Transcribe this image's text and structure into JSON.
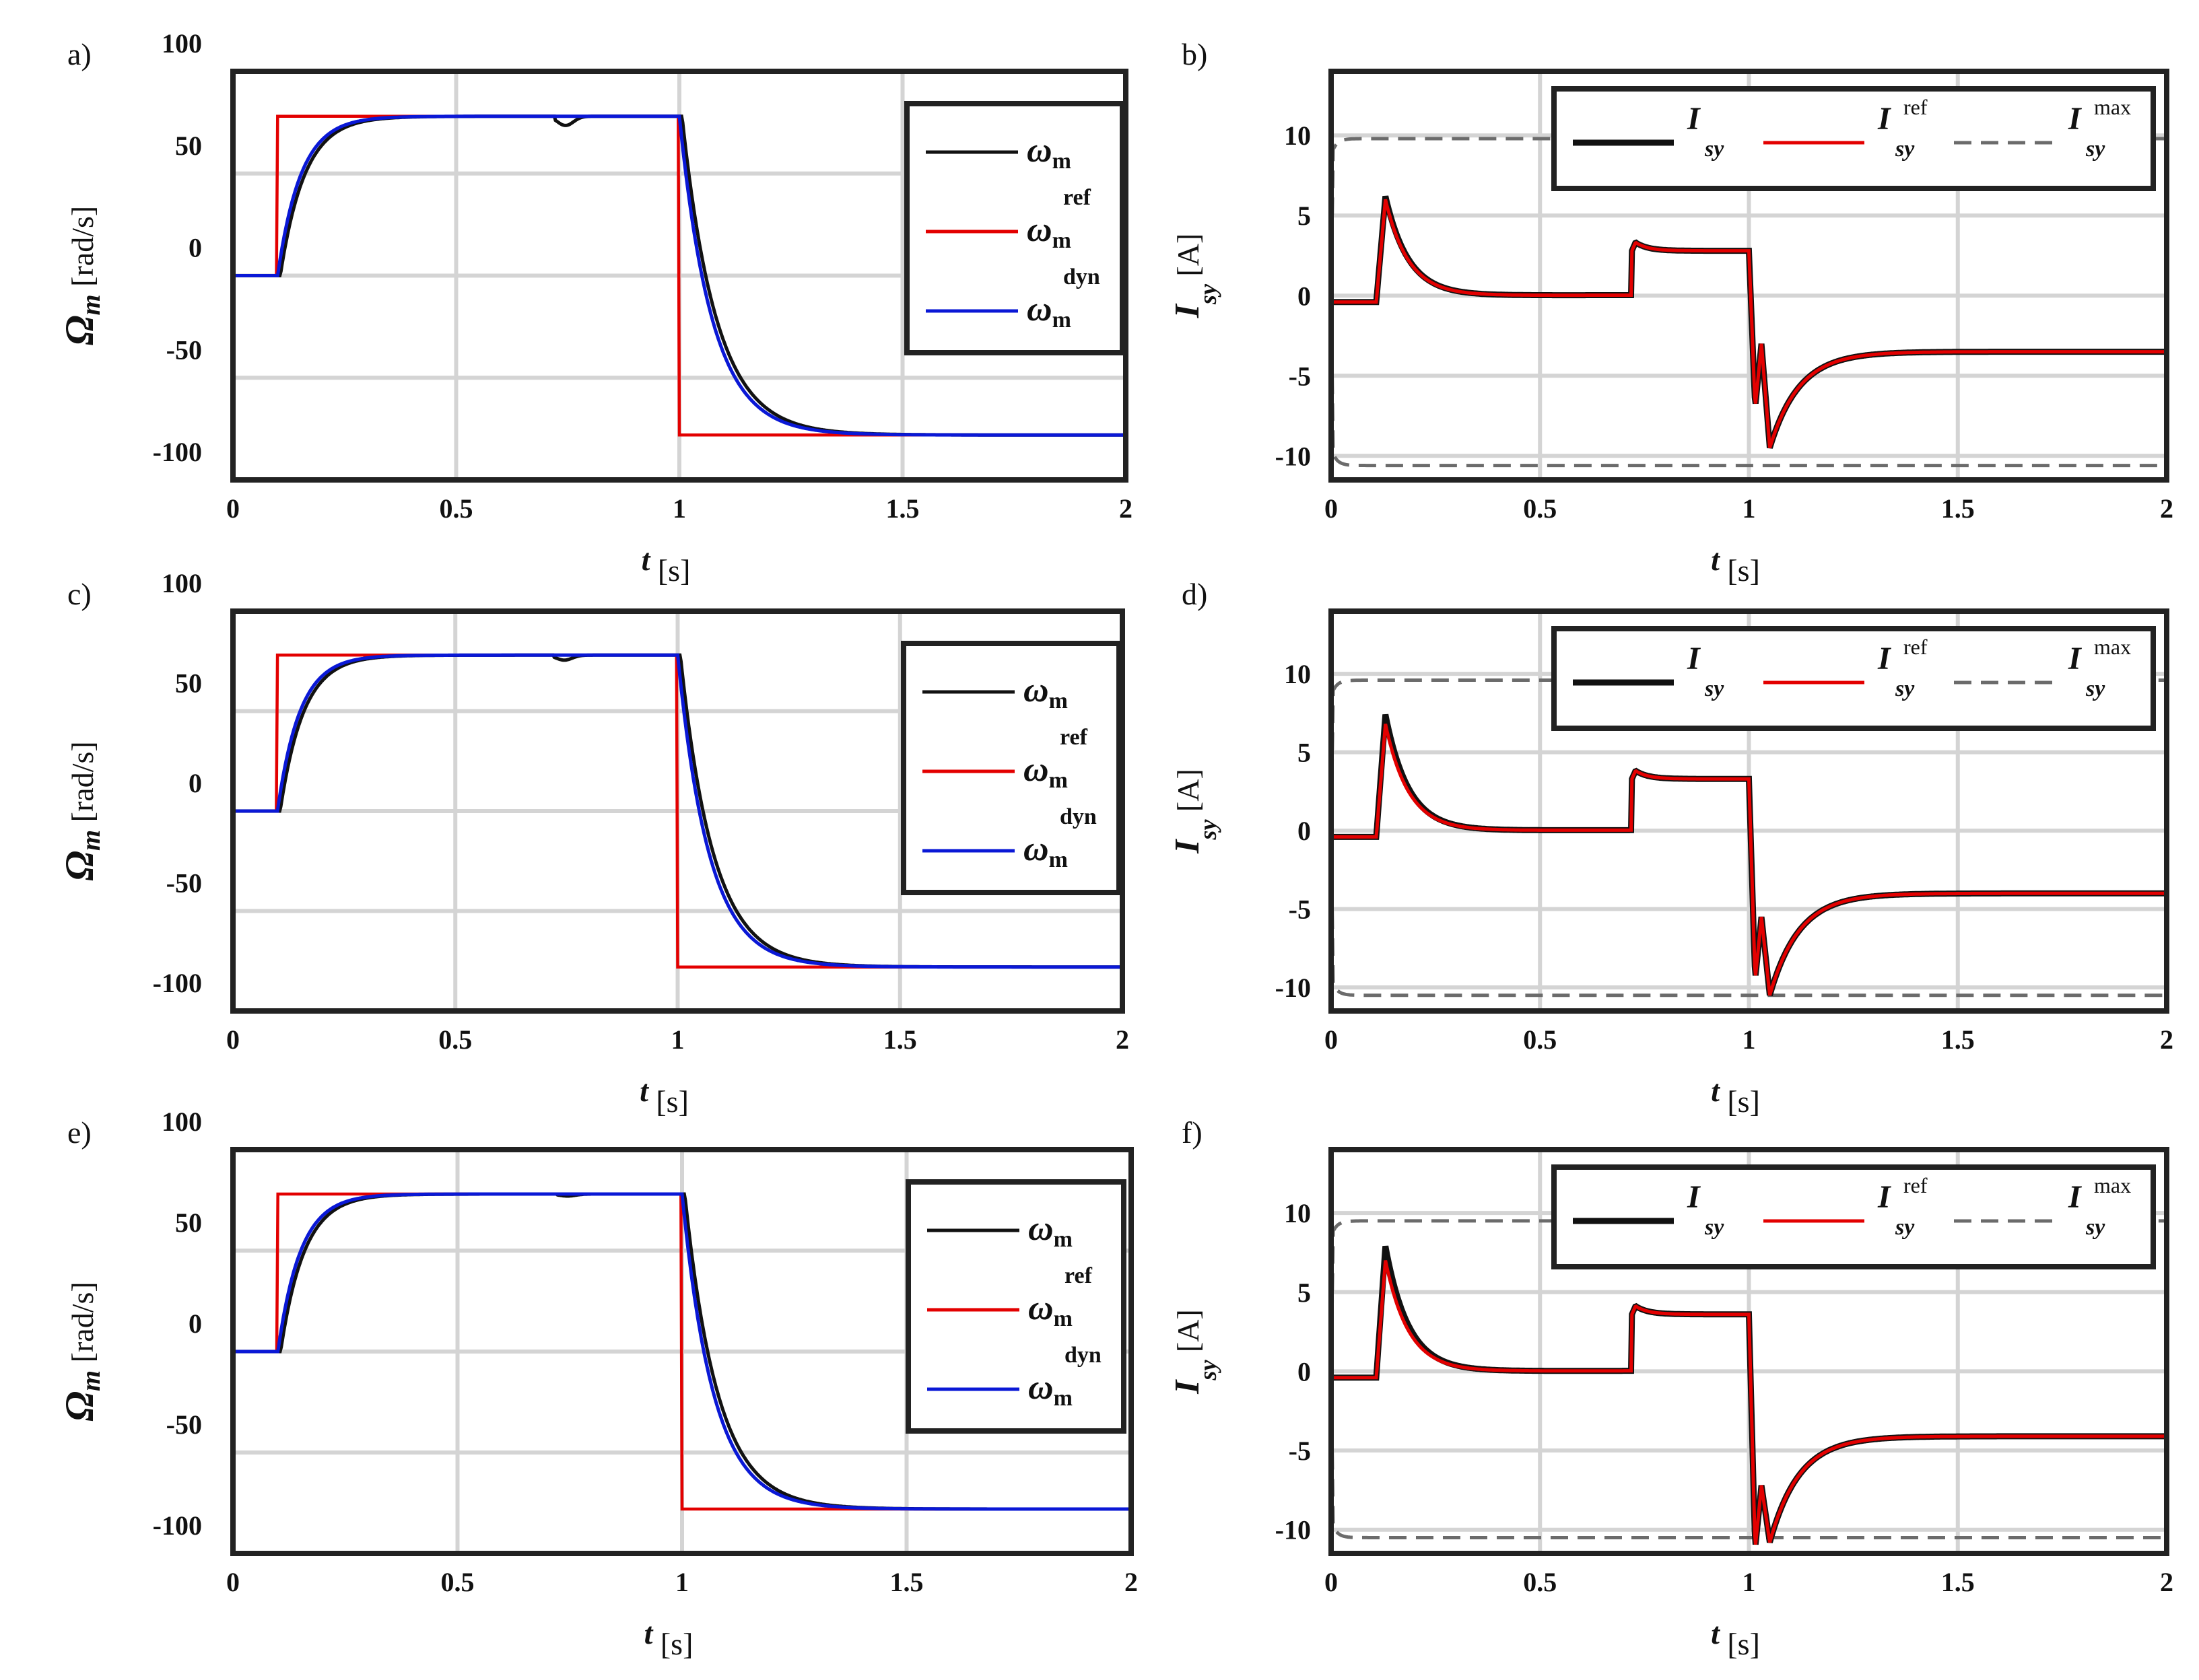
{
  "colors": {
    "measured": "#111111",
    "reference": "#e30000",
    "dynamic": "#0a18d6",
    "limit": "#6b6b6b",
    "grid": "#d4d4d4",
    "frame": "#222222"
  },
  "chart_data": [
    {
      "id": "a",
      "panel_label": "a)",
      "type": "line",
      "variant": "speed",
      "ylabel": "Ω_m",
      "ylabel_symbol": "Ω",
      "ylabel_sub": "m",
      "yunit": "[rad/s]",
      "xlabel": "t",
      "xunit": "[s]",
      "xlim": [
        0,
        2
      ],
      "ylim": [
        -100,
        100
      ],
      "xticks": [
        0,
        0.5,
        1,
        1.5,
        2
      ],
      "xtick_labels": [
        "0",
        "0.5",
        "1",
        "1.5",
        "2"
      ],
      "yticks": [
        -100,
        -50,
        0,
        50,
        100
      ],
      "ytick_labels": [
        "-100",
        "-50",
        "0",
        "50",
        "100"
      ],
      "grid": true,
      "legend_position": "top-right",
      "legend": [
        {
          "key": "meas",
          "symbol": "ω",
          "sub": "m",
          "sup": ""
        },
        {
          "key": "ref",
          "symbol": "ω",
          "sub": "m",
          "sup": "ref"
        },
        {
          "key": "dyn",
          "symbol": "ω",
          "sub": "m",
          "sup": "dyn"
        }
      ],
      "params": {
        "step_on": 0.1,
        "step_off": 1.0,
        "speed_ref": 78,
        "tau": 0.052,
        "dip": 4.5
      }
    },
    {
      "id": "b",
      "panel_label": "b)",
      "type": "line",
      "variant": "current",
      "ylabel": "I_sy",
      "ylabel_symbol": "I",
      "ylabel_sub": "sy",
      "yunit": "[A]",
      "xlabel": "t",
      "xunit": "[s]",
      "xlim": [
        0,
        2
      ],
      "ylim": [
        -11.5,
        14
      ],
      "xticks": [
        0,
        0.5,
        1,
        1.5,
        2
      ],
      "xtick_labels": [
        "0",
        "0.5",
        "1",
        "1.5",
        "2"
      ],
      "yticks": [
        -10,
        -5,
        0,
        5,
        10
      ],
      "ytick_labels": [
        "-10",
        "-5",
        "0",
        "5",
        "10"
      ],
      "grid": true,
      "legend_position": "top",
      "legend": [
        {
          "key": "meas",
          "symbol": "I",
          "sub": "sy",
          "sup": ""
        },
        {
          "key": "ref",
          "symbol": "I",
          "sub": "sy",
          "sup": "ref"
        },
        {
          "key": "max",
          "symbol": "I",
          "sub": "sy",
          "sup": "max"
        }
      ],
      "params": {
        "offset": -0.4,
        "peak1": 6.0,
        "peak1_meas": 6.2,
        "load": 2.8,
        "peak2": -9.5,
        "dip2": -7.0,
        "final": -3.5,
        "imax": 9.8,
        "imin": -10.6
      }
    },
    {
      "id": "c",
      "panel_label": "c)",
      "type": "line",
      "variant": "speed",
      "ylabel": "Ω_m",
      "ylabel_symbol": "Ω",
      "ylabel_sub": "m",
      "yunit": "[rad/s]",
      "xlabel": "t",
      "xunit": "[s]",
      "xlim": [
        0,
        2
      ],
      "ylim": [
        -100,
        100
      ],
      "xticks": [
        0,
        0.5,
        1,
        1.5,
        2
      ],
      "xtick_labels": [
        "0",
        "0.5",
        "1",
        "1.5",
        "2"
      ],
      "yticks": [
        -100,
        -50,
        0,
        50,
        100
      ],
      "ytick_labels": [
        "-100",
        "-50",
        "0",
        "50",
        "100"
      ],
      "grid": true,
      "legend_position": "top-right",
      "legend": [
        {
          "key": "meas",
          "symbol": "ω",
          "sub": "m",
          "sup": ""
        },
        {
          "key": "ref",
          "symbol": "ω",
          "sub": "m",
          "sup": "ref"
        },
        {
          "key": "dyn",
          "symbol": "ω",
          "sub": "m",
          "sup": "dyn"
        }
      ],
      "params": {
        "step_on": 0.1,
        "step_off": 1.0,
        "speed_ref": 78,
        "tau": 0.05,
        "dip": 2.5
      }
    },
    {
      "id": "d",
      "panel_label": "d)",
      "type": "line",
      "variant": "current",
      "ylabel": "I_sy",
      "ylabel_symbol": "I",
      "ylabel_sub": "sy",
      "yunit": "[A]",
      "xlabel": "t",
      "xunit": "[s]",
      "xlim": [
        0,
        2
      ],
      "ylim": [
        -11.5,
        14
      ],
      "xticks": [
        0,
        0.5,
        1,
        1.5,
        2
      ],
      "xtick_labels": [
        "0",
        "0.5",
        "1",
        "1.5",
        "2"
      ],
      "yticks": [
        -10,
        -5,
        0,
        5,
        10
      ],
      "ytick_labels": [
        "-10",
        "-5",
        "0",
        "5",
        "10"
      ],
      "grid": true,
      "legend_position": "top",
      "legend": [
        {
          "key": "meas",
          "symbol": "I",
          "sub": "sy",
          "sup": ""
        },
        {
          "key": "ref",
          "symbol": "I",
          "sub": "sy",
          "sup": "ref"
        },
        {
          "key": "max",
          "symbol": "I",
          "sub": "sy",
          "sup": "max"
        }
      ],
      "params": {
        "offset": -0.4,
        "peak1": 6.8,
        "peak1_meas": 7.4,
        "load": 3.3,
        "peak2": -10.5,
        "dip2": -9.5,
        "final": -4.0,
        "imax": 9.6,
        "imin": -10.5
      }
    },
    {
      "id": "e",
      "panel_label": "e)",
      "type": "line",
      "variant": "speed",
      "ylabel": "Ω_m",
      "ylabel_symbol": "Ω",
      "ylabel_sub": "m",
      "yunit": "[rad/s]",
      "xlabel": "t",
      "xunit": "[s]",
      "xlim": [
        0,
        2
      ],
      "ylim": [
        -100,
        100
      ],
      "xticks": [
        0,
        0.5,
        1,
        1.5,
        2
      ],
      "xtick_labels": [
        "0",
        "0.5",
        "1",
        "1.5",
        "2"
      ],
      "yticks": [
        -100,
        -50,
        0,
        50,
        100
      ],
      "ytick_labels": [
        "-100",
        "-50",
        "0",
        "50",
        "100"
      ],
      "grid": true,
      "legend_position": "top-right",
      "legend": [
        {
          "key": "meas",
          "symbol": "ω",
          "sub": "m",
          "sup": ""
        },
        {
          "key": "ref",
          "symbol": "ω",
          "sub": "m",
          "sup": "ref"
        },
        {
          "key": "dyn",
          "symbol": "ω",
          "sub": "m",
          "sup": "dyn"
        }
      ],
      "params": {
        "step_on": 0.1,
        "step_off": 1.0,
        "speed_ref": 78,
        "tau": 0.05,
        "dip": 1.0
      }
    },
    {
      "id": "f",
      "panel_label": "f)",
      "type": "line",
      "variant": "current",
      "ylabel": "I_sy",
      "ylabel_symbol": "I",
      "ylabel_sub": "sy",
      "yunit": "[A]",
      "xlabel": "t",
      "xunit": "[s]",
      "xlim": [
        0,
        2
      ],
      "ylim": [
        -11.5,
        14
      ],
      "xticks": [
        0,
        0.5,
        1,
        1.5,
        2
      ],
      "xtick_labels": [
        "0",
        "0.5",
        "1",
        "1.5",
        "2"
      ],
      "yticks": [
        -10,
        -5,
        0,
        5,
        10
      ],
      "ytick_labels": [
        "-10",
        "-5",
        "0",
        "5",
        "10"
      ],
      "grid": true,
      "legend_position": "top",
      "legend": [
        {
          "key": "meas",
          "symbol": "I",
          "sub": "sy",
          "sup": ""
        },
        {
          "key": "ref",
          "symbol": "I",
          "sub": "sy",
          "sup": "ref"
        },
        {
          "key": "max",
          "symbol": "I",
          "sub": "sy",
          "sup": "max"
        }
      ],
      "params": {
        "offset": -0.4,
        "peak1": 7.0,
        "peak1_meas": 7.9,
        "load": 3.6,
        "peak2": -10.8,
        "dip2": -11.2,
        "final": -4.1,
        "imax": 9.5,
        "imin": -10.5
      }
    }
  ]
}
